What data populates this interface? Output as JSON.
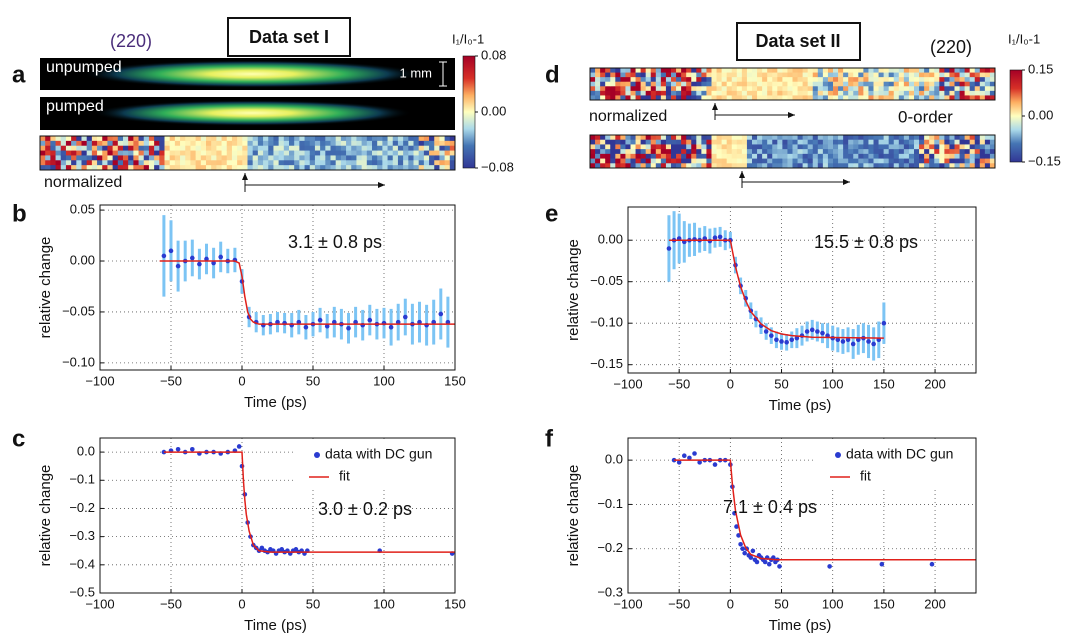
{
  "image_panels": [
    {
      "label": "a",
      "title": "Data set I",
      "reflection": "(220)",
      "strip_labels": [
        "unpumped",
        "pumped"
      ],
      "scale_bar": "1 mm",
      "normalized_label": "normalized",
      "colorbar": {
        "label": "I₁/I₀-1",
        "lim": [
          -0.08,
          0.08
        ],
        "ticks": [
          {
            "value": -0.08,
            "label": "−0.08"
          },
          {
            "value": 0,
            "label": "0.00"
          },
          0.08
        ]
      }
    },
    {
      "label": "d",
      "title": "Data set II",
      "reflection": "(220)",
      "normalized_label": "normalized",
      "order_label": "0-order",
      "colorbar": {
        "label": "I₁/I₀-1",
        "lim": [
          -0.15,
          0.15
        ],
        "ticks": [
          {
            "value": -0.15,
            "label": "−0.15"
          },
          {
            "value": 0,
            "label": "0.00"
          },
          0.15
        ]
      }
    }
  ],
  "chart_data": [
    {
      "type": "scatter",
      "label": "b",
      "xlabel": "Time (ps)",
      "ylabel": "relative  change",
      "annotation": "3.1 ± 0.8 ps",
      "grid": true,
      "xlim": [
        -100,
        150
      ],
      "xticks": [
        {
          "value": -100,
          "label": "−100"
        },
        {
          "value": -50,
          "label": "−50"
        },
        0,
        50,
        100,
        150
      ],
      "ylim": [
        -0.107,
        0.055
      ],
      "yticks": [
        {
          "value": -0.1,
          "label": "−0.10"
        },
        {
          "value": -0.05,
          "label": "−0.05"
        },
        {
          "value": 0,
          "label": "0.00"
        },
        0.05
      ],
      "series": [
        {
          "style": "marker",
          "color": "#2a3bd0",
          "error_color": "#7cc4f4",
          "x": [
            -55,
            -50,
            -45,
            -40,
            -35,
            -30,
            -25,
            -20,
            -15,
            -10,
            -5,
            0,
            5,
            10,
            15,
            20,
            25,
            30,
            35,
            40,
            45,
            50,
            55,
            60,
            65,
            70,
            75,
            80,
            85,
            90,
            95,
            100,
            105,
            110,
            115,
            120,
            125,
            130,
            135,
            140,
            145
          ],
          "values": [
            0.005,
            0.01,
            -0.005,
            0.0,
            0.003,
            -0.003,
            0.002,
            -0.002,
            0.004,
            0.0,
            0.001,
            -0.02,
            -0.055,
            -0.06,
            -0.063,
            -0.062,
            -0.06,
            -0.061,
            -0.063,
            -0.06,
            -0.065,
            -0.062,
            -0.058,
            -0.064,
            -0.06,
            -0.062,
            -0.066,
            -0.06,
            -0.063,
            -0.058,
            -0.062,
            -0.061,
            -0.065,
            -0.06,
            -0.055,
            -0.062,
            -0.06,
            -0.063,
            -0.06,
            -0.052,
            -0.06
          ],
          "errors": [
            0.04,
            0.03,
            0.025,
            0.02,
            0.018,
            0.015,
            0.015,
            0.015,
            0.015,
            0.012,
            0.012,
            0.012,
            0.01,
            0.01,
            0.01,
            0.01,
            0.01,
            0.01,
            0.012,
            0.012,
            0.012,
            0.012,
            0.012,
            0.012,
            0.015,
            0.015,
            0.015,
            0.015,
            0.015,
            0.015,
            0.015,
            0.015,
            0.018,
            0.018,
            0.018,
            0.02,
            0.02,
            0.02,
            0.022,
            0.025,
            0.025
          ]
        },
        {
          "style": "line",
          "color": "#e0201a",
          "x": [
            -58,
            -5,
            -2,
            0,
            2,
            4,
            6,
            8,
            12,
            20,
            150
          ],
          "values": [
            0,
            0,
            -0.002,
            -0.015,
            -0.035,
            -0.05,
            -0.057,
            -0.06,
            -0.062,
            -0.062,
            -0.062
          ]
        }
      ]
    },
    {
      "type": "scatter",
      "label": "c",
      "xlabel": "Time (ps)",
      "ylabel": "relative  change",
      "annotation": "3.0 ± 0.2 ps",
      "grid": true,
      "legend": "upper right",
      "xlim": [
        -100,
        150
      ],
      "xticks": [
        {
          "value": -100,
          "label": "−100"
        },
        {
          "value": -50,
          "label": "−50"
        },
        0,
        50,
        100,
        150
      ],
      "ylim": [
        -0.5,
        0.05
      ],
      "yticks": [
        {
          "value": -0.5,
          "label": "−0.5"
        },
        {
          "value": -0.4,
          "label": "−0.4"
        },
        {
          "value": -0.3,
          "label": "−0.3"
        },
        {
          "value": -0.2,
          "label": "−0.2"
        },
        {
          "value": -0.1,
          "label": "−0.1"
        },
        {
          "value": 0,
          "label": "0.0"
        }
      ],
      "series": [
        {
          "name": "data with DC gun",
          "style": "marker",
          "color": "#2a3bd0",
          "x": [
            -55,
            -50,
            -45,
            -40,
            -35,
            -30,
            -25,
            -20,
            -15,
            -10,
            -5,
            -2,
            0,
            2,
            4,
            6,
            8,
            10,
            12,
            14,
            16,
            18,
            20,
            22,
            24,
            26,
            28,
            30,
            32,
            34,
            36,
            38,
            40,
            42,
            44,
            46,
            97,
            148
          ],
          "values": [
            0.0,
            0.005,
            0.01,
            0.0,
            0.01,
            -0.005,
            0.0,
            0.0,
            -0.005,
            0.0,
            0.005,
            0.02,
            -0.05,
            -0.15,
            -0.25,
            -0.3,
            -0.33,
            -0.34,
            -0.35,
            -0.34,
            -0.35,
            -0.355,
            -0.345,
            -0.35,
            -0.36,
            -0.35,
            -0.345,
            -0.355,
            -0.35,
            -0.36,
            -0.35,
            -0.345,
            -0.355,
            -0.35,
            -0.36,
            -0.35,
            -0.35,
            -0.36
          ]
        },
        {
          "name": "fit",
          "style": "line",
          "color": "#e0201a",
          "x": [
            -55,
            0,
            1,
            2,
            3,
            5,
            8,
            12,
            20,
            150
          ],
          "values": [
            0,
            0,
            -0.1,
            -0.17,
            -0.22,
            -0.28,
            -0.33,
            -0.35,
            -0.355,
            -0.355
          ]
        }
      ]
    },
    {
      "type": "scatter",
      "label": "e",
      "xlabel": "Time (ps)",
      "ylabel": "relative  change",
      "annotation": "15.5 ± 0.8 ps",
      "grid": true,
      "xlim": [
        -100,
        240
      ],
      "xticks": [
        {
          "value": -100,
          "label": "−100"
        },
        {
          "value": -50,
          "label": "−50"
        },
        0,
        50,
        100,
        150,
        200
      ],
      "ylim": [
        -0.16,
        0.04
      ],
      "yticks": [
        {
          "value": -0.15,
          "label": "−0.15"
        },
        {
          "value": -0.1,
          "label": "−0.10"
        },
        {
          "value": -0.05,
          "label": "−0.05"
        },
        {
          "value": 0,
          "label": "0.00"
        }
      ],
      "series": [
        {
          "style": "marker",
          "color": "#2a3bd0",
          "error_color": "#7cc4f4",
          "x": [
            -60,
            -55,
            -50,
            -45,
            -40,
            -35,
            -30,
            -25,
            -20,
            -15,
            -10,
            -5,
            0,
            5,
            10,
            15,
            20,
            25,
            30,
            35,
            40,
            45,
            50,
            55,
            60,
            65,
            70,
            75,
            80,
            85,
            90,
            95,
            100,
            105,
            110,
            115,
            120,
            125,
            130,
            135,
            140,
            145,
            150
          ],
          "values": [
            -0.01,
            0.0,
            0.002,
            -0.002,
            0.0,
            0.001,
            0.0,
            0.002,
            -0.001,
            0.003,
            0.004,
            0.0,
            0.0,
            -0.03,
            -0.055,
            -0.07,
            -0.085,
            -0.095,
            -0.103,
            -0.11,
            -0.115,
            -0.12,
            -0.122,
            -0.123,
            -0.12,
            -0.118,
            -0.115,
            -0.11,
            -0.108,
            -0.11,
            -0.112,
            -0.115,
            -0.118,
            -0.12,
            -0.122,
            -0.12,
            -0.125,
            -0.12,
            -0.118,
            -0.122,
            -0.125,
            -0.12,
            -0.1
          ],
          "errors": [
            0.04,
            0.035,
            0.03,
            0.025,
            0.02,
            0.02,
            0.015,
            0.015,
            0.015,
            0.012,
            0.012,
            0.012,
            0.01,
            0.01,
            0.01,
            0.01,
            0.01,
            0.01,
            0.01,
            0.01,
            0.01,
            0.01,
            0.01,
            0.01,
            0.01,
            0.012,
            0.012,
            0.012,
            0.012,
            0.012,
            0.012,
            0.015,
            0.015,
            0.015,
            0.015,
            0.015,
            0.018,
            0.018,
            0.018,
            0.02,
            0.02,
            0.022,
            0.025
          ]
        },
        {
          "style": "line",
          "color": "#e0201a",
          "x": [
            -60,
            0,
            5,
            10,
            15,
            20,
            30,
            40,
            50,
            60,
            80,
            150
          ],
          "values": [
            0,
            0,
            -0.032,
            -0.056,
            -0.073,
            -0.086,
            -0.101,
            -0.109,
            -0.113,
            -0.115,
            -0.117,
            -0.118
          ]
        }
      ]
    },
    {
      "type": "scatter",
      "label": "f",
      "xlabel": "Time (ps)",
      "ylabel": "relative  change",
      "annotation": "7.1 ± 0.4 ps",
      "grid": true,
      "legend": "upper right",
      "xlim": [
        -100,
        240
      ],
      "xticks": [
        {
          "value": -100,
          "label": "−100"
        },
        {
          "value": -50,
          "label": "−50"
        },
        0,
        50,
        100,
        150,
        200
      ],
      "ylim": [
        -0.3,
        0.05
      ],
      "yticks": [
        {
          "value": -0.3,
          "label": "−0.3"
        },
        {
          "value": -0.2,
          "label": "−0.2"
        },
        {
          "value": -0.1,
          "label": "−0.1"
        },
        {
          "value": 0,
          "label": "0.0"
        }
      ],
      "series": [
        {
          "name": "data with DC gun",
          "style": "marker",
          "color": "#2a3bd0",
          "x": [
            -55,
            -50,
            -45,
            -40,
            -35,
            -30,
            -25,
            -20,
            -15,
            -10,
            -5,
            0,
            2,
            4,
            6,
            8,
            10,
            12,
            14,
            16,
            18,
            20,
            22,
            24,
            26,
            28,
            30,
            32,
            34,
            36,
            38,
            40,
            42,
            44,
            46,
            48,
            97,
            148,
            197
          ],
          "values": [
            0.0,
            -0.005,
            0.01,
            0.005,
            0.015,
            -0.005,
            0.0,
            0.0,
            -0.01,
            0.0,
            0.0,
            -0.01,
            -0.06,
            -0.12,
            -0.15,
            -0.17,
            -0.19,
            -0.2,
            -0.21,
            -0.2,
            -0.215,
            -0.22,
            -0.205,
            -0.225,
            -0.23,
            -0.215,
            -0.22,
            -0.225,
            -0.23,
            -0.22,
            -0.235,
            -0.225,
            -0.22,
            -0.23,
            -0.225,
            -0.24,
            -0.24,
            -0.235,
            -0.235
          ]
        },
        {
          "name": "fit",
          "style": "line",
          "color": "#e0201a",
          "x": [
            -55,
            0,
            2,
            5,
            10,
            15,
            20,
            30,
            45,
            240
          ],
          "values": [
            0,
            0,
            -0.055,
            -0.114,
            -0.169,
            -0.198,
            -0.213,
            -0.222,
            -0.225,
            -0.225
          ]
        }
      ]
    }
  ]
}
